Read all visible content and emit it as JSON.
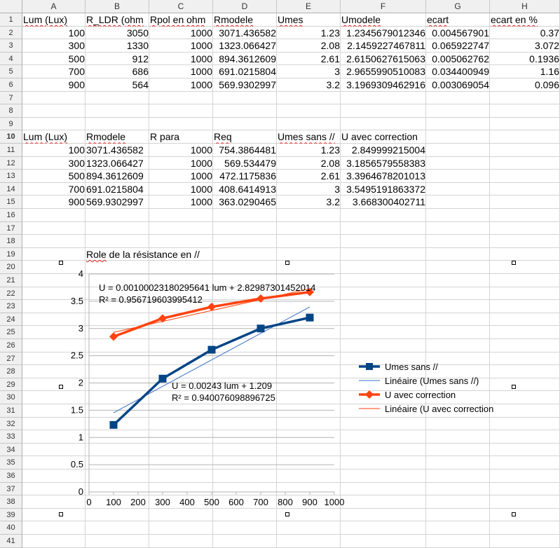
{
  "columns": [
    "A",
    "B",
    "C",
    "D",
    "E",
    "F",
    "G",
    "H"
  ],
  "rows": [
    "1",
    "2",
    "3",
    "4",
    "5",
    "6",
    "7",
    "8",
    "9",
    "10",
    "11",
    "12",
    "13",
    "14",
    "15",
    "16",
    "17",
    "18",
    "19",
    "20",
    "21",
    "22",
    "23",
    "24",
    "25",
    "26",
    "27",
    "28",
    "29",
    "30",
    "31",
    "32",
    "33",
    "34",
    "35",
    "36",
    "37",
    "38",
    "39",
    "40",
    "41"
  ],
  "table1": {
    "headers": [
      "Lum (Lux)",
      "R_LDR (ohm",
      "Rpol en ohm",
      "Rmodele",
      "Umes",
      "Umodele",
      "ecart",
      "ecart en %"
    ],
    "rows": [
      [
        "100",
        "3050",
        "1000",
        "3071.436582",
        "1.23",
        "1.2345679012346",
        "0.004567901",
        "0.37"
      ],
      [
        "300",
        "1330",
        "1000",
        "1323.066427",
        "2.08",
        "2.1459227467811",
        "0.065922747",
        "3.072"
      ],
      [
        "500",
        "912",
        "1000",
        "894.3612609",
        "2.61",
        "2.6150627615063",
        "0.005062762",
        "0.1936"
      ],
      [
        "700",
        "686",
        "1000",
        "691.0215804",
        "3",
        "2.9655990510083",
        "0.034400949",
        "1.16"
      ],
      [
        "900",
        "564",
        "1000",
        "569.9302997",
        "3.2",
        "3.1969309462916",
        "0.003069054",
        "0.096"
      ]
    ]
  },
  "table2": {
    "headers": [
      "Lum (Lux)",
      "Rmodele",
      "R para",
      "Req",
      "Umes sans //",
      "U avec correction"
    ],
    "rows": [
      [
        "100",
        "3071.436582",
        "1000",
        "754.3864481",
        "1.23",
        "2.849999215004"
      ],
      [
        "300",
        "1323.066427",
        "1000",
        "569.534479",
        "2.08",
        "3.1856579558383"
      ],
      [
        "500",
        "894.3612609",
        "1000",
        "472.1175836",
        "2.61",
        "3.3964678201013"
      ],
      [
        "700",
        "691.0215804",
        "1000",
        "408.6414913",
        "3",
        "3.5495191863372"
      ],
      [
        "900",
        "569.9302997",
        "1000",
        "363.0290465",
        "3.2",
        "3.668300402711"
      ]
    ]
  },
  "note": "Role de la résistance en //",
  "chart_data": {
    "type": "line",
    "x": [
      100,
      300,
      500,
      700,
      900
    ],
    "series": [
      {
        "name": "Umes sans //",
        "values": [
          1.23,
          2.08,
          2.61,
          3,
          3.2
        ],
        "color": "#004586"
      },
      {
        "name": "U avec correction",
        "values": [
          2.849999215004,
          3.1856579558383,
          3.3964678201013,
          3.5495191863372,
          3.668300402711
        ],
        "color": "#ff420e"
      }
    ],
    "trendlines": [
      {
        "name": "Linéaire (Umes sans //)",
        "slope": 0.00243,
        "intercept": 1.209,
        "equation": "U = 0.00243 lum + 1.209",
        "r2": "R² = 0.940076098896725",
        "color": "#3a6fc4"
      },
      {
        "name": "Linéaire (U avec correction",
        "slope": 0.00100023180295641,
        "intercept": 2.82987301452014,
        "equation": "U = 0.00100023180295641 lum + 2.82987301452014",
        "r2": "R² = 0.956719603995412",
        "color": "#ff420e"
      }
    ],
    "xlim": [
      0,
      1000
    ],
    "xticks": [
      "0",
      "100",
      "200",
      "300",
      "400",
      "500",
      "600",
      "700",
      "800",
      "900",
      "1000"
    ],
    "ylim": [
      0,
      4
    ],
    "yticks": [
      "0",
      "0.5",
      "1",
      "1.5",
      "2",
      "2.5",
      "3",
      "3.5",
      "4"
    ],
    "grid": "horizontal",
    "legend": "right"
  }
}
